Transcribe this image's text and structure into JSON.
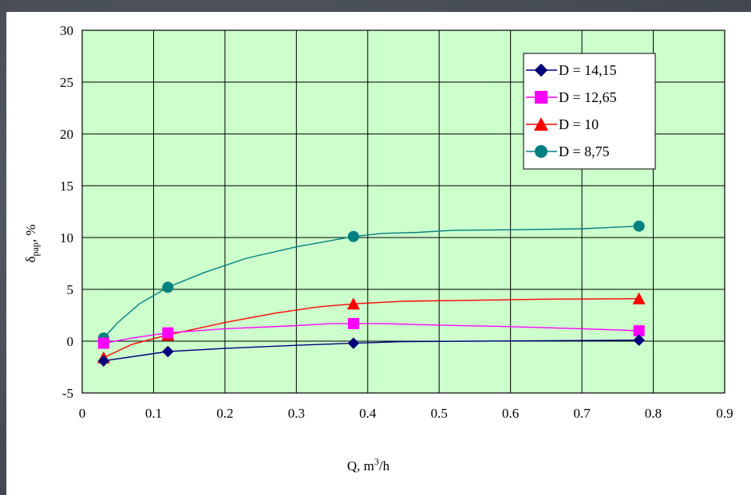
{
  "colors": {
    "slide_background": "#4a4f5a",
    "plot_background": "#ccffcc",
    "grid": "#000000"
  },
  "chart_data": {
    "type": "line",
    "title": "",
    "xlabel": "Q, m³/h",
    "ylabel": "δpap, %",
    "xlim": [
      0,
      0.9
    ],
    "ylim": [
      -5,
      30
    ],
    "xticks": [
      0,
      0.1,
      0.2,
      0.3,
      0.4,
      0.5,
      0.6,
      0.7,
      0.8,
      0.9
    ],
    "yticks": [
      -5,
      0,
      5,
      10,
      15,
      20,
      25,
      30
    ],
    "grid": true,
    "legend_position": "top-right",
    "series": [
      {
        "name": "D = 14,15",
        "color": "#000080",
        "marker": "diamond",
        "x": [
          0.03,
          0.12,
          0.38,
          0.78
        ],
        "y": [
          -1.9,
          -1.0,
          -0.2,
          0.1
        ],
        "curve_x": [
          0.03,
          0.07,
          0.12,
          0.2,
          0.3,
          0.38,
          0.45,
          0.55,
          0.65,
          0.78
        ],
        "curve_y": [
          -1.9,
          -1.5,
          -1.0,
          -0.7,
          -0.4,
          -0.2,
          -0.05,
          0.0,
          0.05,
          0.1
        ]
      },
      {
        "name": "D = 12,65",
        "color": "#ff00ff",
        "marker": "square",
        "x": [
          0.03,
          0.12,
          0.38,
          0.78
        ],
        "y": [
          -0.2,
          0.8,
          1.7,
          1.0
        ],
        "curve_x": [
          0.03,
          0.07,
          0.12,
          0.2,
          0.3,
          0.35,
          0.38,
          0.42,
          0.5,
          0.6,
          0.7,
          0.78
        ],
        "curve_y": [
          -0.2,
          0.3,
          0.8,
          1.2,
          1.5,
          1.7,
          1.7,
          1.7,
          1.55,
          1.4,
          1.2,
          1.0
        ]
      },
      {
        "name": "D = 10",
        "color": "#ff0000",
        "marker": "triangle",
        "x": [
          0.03,
          0.12,
          0.38,
          0.78
        ],
        "y": [
          -1.6,
          0.6,
          3.6,
          4.1
        ],
        "curve_x": [
          0.03,
          0.07,
          0.12,
          0.2,
          0.27,
          0.33,
          0.38,
          0.45,
          0.55,
          0.65,
          0.78
        ],
        "curve_y": [
          -1.6,
          -0.3,
          0.6,
          1.8,
          2.7,
          3.3,
          3.6,
          3.85,
          3.95,
          4.05,
          4.1
        ]
      },
      {
        "name": "D = 8,75",
        "color": "#008080",
        "marker": "circle",
        "x": [
          0.03,
          0.12,
          0.38,
          0.78
        ],
        "y": [
          0.3,
          5.2,
          10.1,
          11.1
        ],
        "curve_x": [
          0.03,
          0.05,
          0.08,
          0.12,
          0.17,
          0.23,
          0.3,
          0.38,
          0.42,
          0.47,
          0.52,
          0.6,
          0.7,
          0.78
        ],
        "curve_y": [
          0.3,
          1.8,
          3.6,
          5.2,
          6.6,
          8.0,
          9.1,
          10.1,
          10.4,
          10.5,
          10.7,
          10.75,
          10.85,
          11.1
        ]
      }
    ]
  }
}
